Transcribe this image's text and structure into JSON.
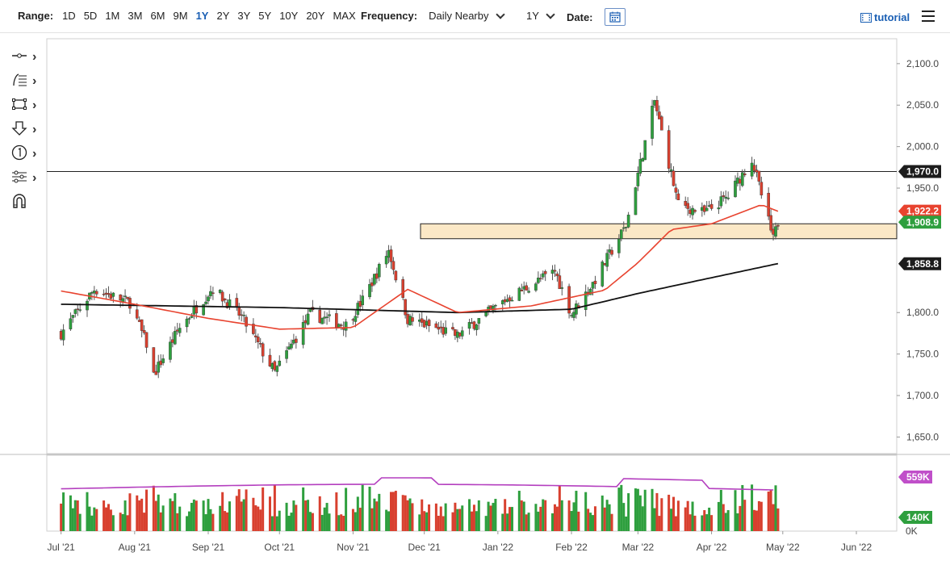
{
  "toolbar": {
    "range_label": "Range:",
    "ranges": [
      "1D",
      "5D",
      "1M",
      "3M",
      "6M",
      "9M",
      "1Y",
      "2Y",
      "3Y",
      "5Y",
      "10Y",
      "20Y",
      "MAX"
    ],
    "active_range": "1Y",
    "frequency_label": "Frequency:",
    "frequency_value": "Daily Nearby",
    "period_value": "1Y",
    "date_label": "Date:",
    "tutorial_label": "tutorial"
  },
  "side_tools": [
    {
      "icon": "line-tool-icon"
    },
    {
      "icon": "fibonacci-tool-icon"
    },
    {
      "icon": "rectangle-tool-icon"
    },
    {
      "icon": "arrow-down-tool-icon"
    },
    {
      "icon": "number-marker-tool-icon"
    },
    {
      "icon": "studies-tool-icon"
    },
    {
      "icon": "magnet-icon"
    }
  ],
  "colors": {
    "up": "#2e9f3e",
    "down": "#d8402f",
    "ma_fast": "#e8432f",
    "ma_slow": "#111111",
    "volume_avg": "#b43fbf",
    "zone_fill": "#fbe8c6",
    "tag_ma_fast": "#e8432f",
    "tag_price": "#2e9f3e",
    "tag_dark": "#1c1c1c",
    "tag_vol_avg": "#c04fc9"
  },
  "chart_data": {
    "type": "candlestick",
    "x_labels": [
      "Jul '21",
      "Aug '21",
      "Sep '21",
      "Oct '21",
      "Nov '21",
      "Dec '21",
      "Jan '22",
      "Feb '22",
      "Mar '22",
      "Apr '22",
      "May '22",
      "Jun '22"
    ],
    "y_ticks": [
      "2,100.0",
      "2,050.0",
      "2,000.0",
      "1,950.0",
      "1,800.0",
      "1,750.0",
      "1,700.0",
      "1,650.0"
    ],
    "y_range": [
      1630,
      2130
    ],
    "horizontal_line": 1970.0,
    "support_zone": [
      1889,
      1907
    ],
    "price_tags": [
      {
        "label": "1,970.0",
        "value": 1970.0,
        "style": "dark"
      },
      {
        "label": "1,922.2",
        "value": 1922.2,
        "style": "ma_fast"
      },
      {
        "label": "1,908.9",
        "value": 1908.9,
        "style": "price"
      },
      {
        "label": "1,858.8",
        "value": 1858.8,
        "style": "dark"
      }
    ],
    "price_path": [
      {
        "d": "2021-07-01",
        "v": 1775
      },
      {
        "d": "2021-07-15",
        "v": 1828
      },
      {
        "d": "2021-07-30",
        "v": 1812
      },
      {
        "d": "2021-08-06",
        "v": 1762
      },
      {
        "d": "2021-08-09",
        "v": 1725
      },
      {
        "d": "2021-08-20",
        "v": 1782
      },
      {
        "d": "2021-09-03",
        "v": 1830
      },
      {
        "d": "2021-09-15",
        "v": 1795
      },
      {
        "d": "2021-09-29",
        "v": 1728
      },
      {
        "d": "2021-10-14",
        "v": 1798
      },
      {
        "d": "2021-10-29",
        "v": 1785
      },
      {
        "d": "2021-11-05",
        "v": 1815
      },
      {
        "d": "2021-11-16",
        "v": 1875
      },
      {
        "d": "2021-11-24",
        "v": 1792
      },
      {
        "d": "2021-12-15",
        "v": 1772
      },
      {
        "d": "2022-01-04",
        "v": 1815
      },
      {
        "d": "2022-01-25",
        "v": 1850
      },
      {
        "d": "2022-02-01",
        "v": 1798
      },
      {
        "d": "2022-02-10",
        "v": 1835
      },
      {
        "d": "2022-02-24",
        "v": 1905
      },
      {
        "d": "2022-03-08",
        "v": 2055
      },
      {
        "d": "2022-03-18",
        "v": 1930
      },
      {
        "d": "2022-03-29",
        "v": 1920
      },
      {
        "d": "2022-04-08",
        "v": 1940
      },
      {
        "d": "2022-04-18",
        "v": 1985
      },
      {
        "d": "2022-04-27",
        "v": 1888
      },
      {
        "d": "2022-04-29",
        "v": 1909
      }
    ],
    "ma_fast_path": [
      {
        "d": "2021-07-01",
        "v": 1826
      },
      {
        "d": "2021-08-01",
        "v": 1810
      },
      {
        "d": "2021-09-01",
        "v": 1793
      },
      {
        "d": "2021-10-01",
        "v": 1780
      },
      {
        "d": "2021-11-01",
        "v": 1782
      },
      {
        "d": "2021-11-24",
        "v": 1828
      },
      {
        "d": "2021-12-15",
        "v": 1800
      },
      {
        "d": "2022-01-15",
        "v": 1808
      },
      {
        "d": "2022-02-15",
        "v": 1827
      },
      {
        "d": "2022-03-01",
        "v": 1860
      },
      {
        "d": "2022-03-15",
        "v": 1900
      },
      {
        "d": "2022-04-01",
        "v": 1907
      },
      {
        "d": "2022-04-22",
        "v": 1930
      },
      {
        "d": "2022-04-29",
        "v": 1922
      }
    ],
    "ma_slow_path": [
      {
        "d": "2021-07-01",
        "v": 1810
      },
      {
        "d": "2021-10-01",
        "v": 1806
      },
      {
        "d": "2021-12-15",
        "v": 1800
      },
      {
        "d": "2022-02-01",
        "v": 1804
      },
      {
        "d": "2022-03-01",
        "v": 1823
      },
      {
        "d": "2022-04-01",
        "v": 1842
      },
      {
        "d": "2022-04-29",
        "v": 1859
      }
    ],
    "volume": {
      "tags": [
        {
          "label": "559K",
          "style": "vol_avg"
        },
        {
          "label": "140K",
          "style": "price"
        }
      ],
      "zero_label": "0K"
    }
  }
}
